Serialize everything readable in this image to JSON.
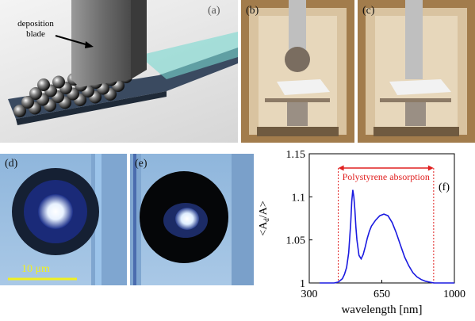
{
  "panels": {
    "a": {
      "label": "(a)",
      "annotation": "deposition\nblade"
    },
    "b": {
      "label": "(b)"
    },
    "c": {
      "label": "(c)"
    },
    "d": {
      "label": "(d)",
      "scale_bar": "10 μm"
    },
    "e": {
      "label": "(e)"
    },
    "f": {
      "label": "(f)"
    }
  },
  "chart_data": {
    "type": "line",
    "xlabel": "wavelength [nm]",
    "ylabel": "<A_d/A>",
    "ylabel_main": "<A",
    "ylabel_sub": "d",
    "ylabel_tail": "/A>",
    "xlim": [
      300,
      1000
    ],
    "ylim": [
      1,
      1.15
    ],
    "xticks": [
      300,
      650,
      1000
    ],
    "yticks": [
      1,
      1.05,
      1.1,
      1.15
    ],
    "xtick_labels": [
      "300",
      "650",
      "1000"
    ],
    "ytick_labels": [
      "1",
      "1.05",
      "1.1",
      "1.15"
    ],
    "grid": false,
    "annotation": {
      "text": "Polystyrene absorption",
      "x_range": [
        440,
        900
      ],
      "color": "#e02020"
    },
    "series": [
      {
        "color": "#1a1ae0",
        "x": [
          350,
          380,
          400,
          420,
          440,
          460,
          470,
          480,
          490,
          500,
          505,
          510,
          515,
          520,
          525,
          530,
          540,
          550,
          560,
          570,
          580,
          590,
          600,
          620,
          640,
          660,
          680,
          700,
          720,
          740,
          760,
          780,
          800,
          820,
          840,
          860,
          880,
          900,
          930,
          960,
          1000
        ],
        "y": [
          1.0,
          1.0,
          1.0,
          1.0,
          1.001,
          1.005,
          1.01,
          1.018,
          1.035,
          1.07,
          1.095,
          1.108,
          1.1,
          1.085,
          1.065,
          1.05,
          1.032,
          1.028,
          1.033,
          1.042,
          1.052,
          1.06,
          1.066,
          1.073,
          1.078,
          1.08,
          1.078,
          1.07,
          1.058,
          1.044,
          1.03,
          1.02,
          1.012,
          1.007,
          1.004,
          1.002,
          1.001,
          1.0,
          1.0,
          1.0,
          1.0
        ]
      }
    ]
  }
}
